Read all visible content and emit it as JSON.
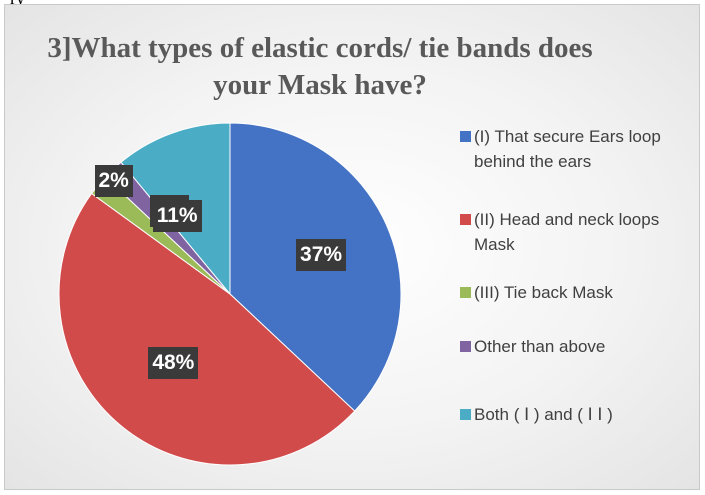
{
  "partial_text": "ry",
  "chart_data": {
    "type": "pie",
    "title": "3]What types of elastic cords/ tie bands does your Mask have?",
    "categories": [
      "(I) That secure Ears loop behind the ears",
      "(II) Head and neck loops Mask",
      "(III) Tie back Mask",
      "Other than above",
      "Both ( Ⅰ ) and ( Ⅰ Ⅰ )"
    ],
    "values": [
      37,
      48,
      2,
      2,
      11
    ],
    "data_labels": [
      "37%",
      "48%",
      "2%",
      "2%",
      "11%"
    ],
    "colors": [
      "#4472c4",
      "#d24b4b",
      "#9bbb59",
      "#8064a2",
      "#4bacc6"
    ],
    "legend_position": "right"
  }
}
